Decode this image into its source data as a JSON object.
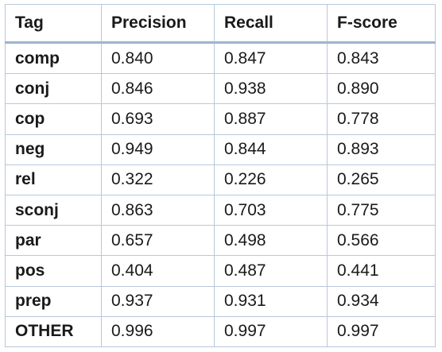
{
  "table": {
    "headers": [
      "Tag",
      "Precision",
      "Recall",
      "F-score"
    ],
    "rows": [
      {
        "tag": "comp",
        "precision": "0.840",
        "recall": "0.847",
        "fscore": "0.843"
      },
      {
        "tag": "conj",
        "precision": "0.846",
        "recall": "0.938",
        "fscore": "0.890"
      },
      {
        "tag": "cop",
        "precision": "0.693",
        "recall": "0.887",
        "fscore": "0.778"
      },
      {
        "tag": "neg",
        "precision": "0.949",
        "recall": "0.844",
        "fscore": "0.893"
      },
      {
        "tag": "rel",
        "precision": "0.322",
        "recall": "0.226",
        "fscore": "0.265"
      },
      {
        "tag": "sconj",
        "precision": "0.863",
        "recall": "0.703",
        "fscore": "0.775"
      },
      {
        "tag": "par",
        "precision": "0.657",
        "recall": "0.498",
        "fscore": "0.566"
      },
      {
        "tag": "pos",
        "precision": "0.404",
        "recall": "0.487",
        "fscore": "0.441"
      },
      {
        "tag": "prep",
        "precision": "0.937",
        "recall": "0.931",
        "fscore": "0.934"
      },
      {
        "tag": "OTHER",
        "precision": "0.996",
        "recall": "0.997",
        "fscore": "0.997"
      }
    ]
  }
}
